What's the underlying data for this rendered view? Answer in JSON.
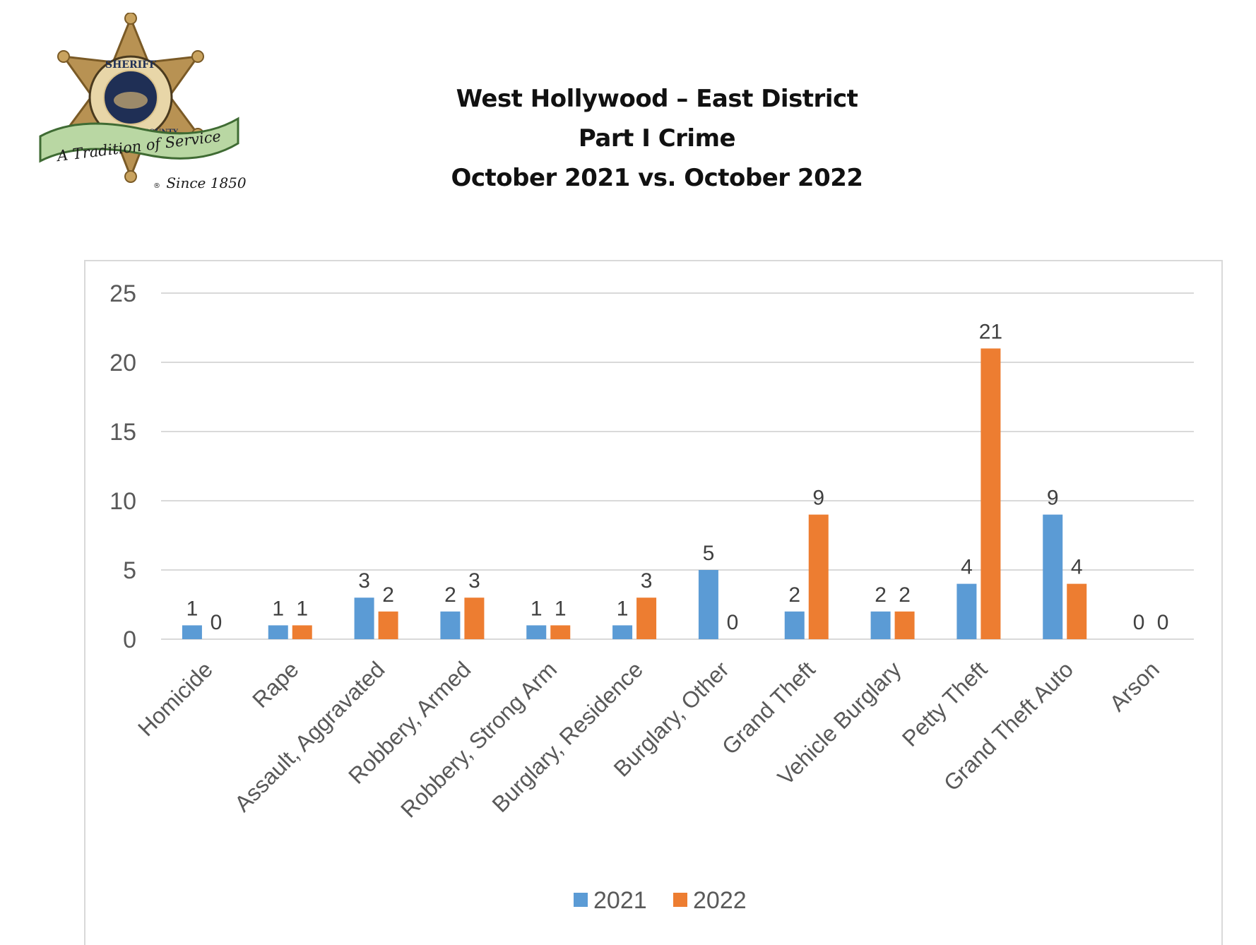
{
  "header": {
    "line1": "West Hollywood – East District",
    "line2": "Part I Crime",
    "line3": "October 2021 vs. October 2022"
  },
  "logo": {
    "icon": "sheriff-star-badge-icon",
    "top_text": "SHERIFF",
    "ring_text": "LOS ANGELES COUNTY",
    "banner_text": "A Tradition of Service",
    "since_text": "Since 1850"
  },
  "colors": {
    "s2021": "#5b9bd5",
    "s2022": "#ed7d31",
    "grid": "#d9d9d9"
  },
  "chart_data": {
    "type": "bar",
    "categories": [
      "Homicide",
      "Rape",
      "Assault, Aggravated",
      "Robbery, Armed",
      "Robbery, Strong Arm",
      "Burglary, Residence",
      "Burglary, Other",
      "Grand Theft",
      "Vehicle Burglary",
      "Petty Theft",
      "Grand Theft Auto",
      "Arson"
    ],
    "series": [
      {
        "name": "2021",
        "values": [
          1,
          1,
          3,
          2,
          1,
          1,
          5,
          2,
          2,
          4,
          9,
          0
        ]
      },
      {
        "name": "2022",
        "values": [
          0,
          1,
          2,
          3,
          1,
          3,
          0,
          9,
          2,
          21,
          4,
          0
        ]
      }
    ],
    "ylim": [
      0,
      25
    ],
    "yticks": [
      0,
      5,
      10,
      15,
      20,
      25
    ],
    "grid": true,
    "legend_position": "bottom"
  }
}
